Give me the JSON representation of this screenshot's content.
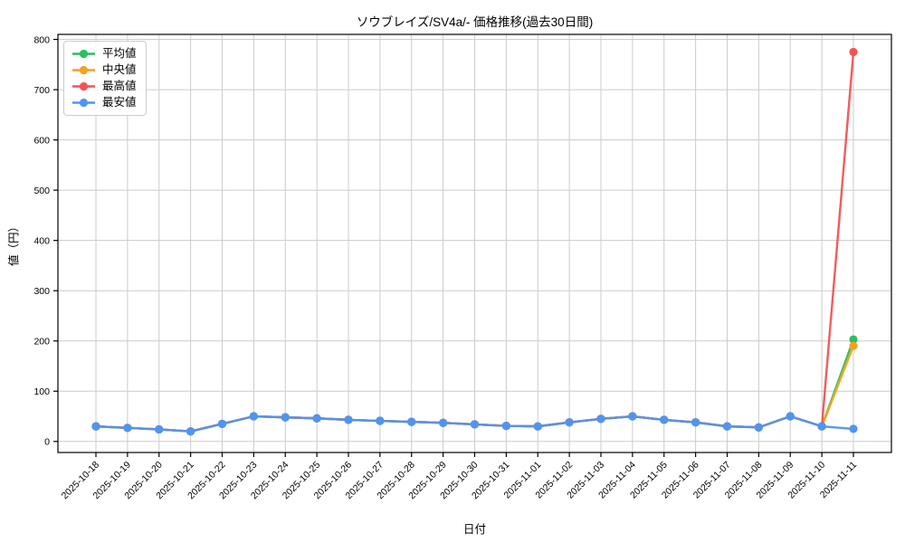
{
  "chart_data": {
    "type": "line",
    "title": "ソウブレイズ/SV4a/- 価格推移(過去30日間)",
    "xlabel": "日付",
    "ylabel": "値（円）",
    "x": [
      "2025-10-18",
      "2025-10-19",
      "2025-10-20",
      "2025-10-21",
      "2025-10-22",
      "2025-10-23",
      "2025-10-24",
      "2025-10-25",
      "2025-10-26",
      "2025-10-27",
      "2025-10-28",
      "2025-10-29",
      "2025-10-30",
      "2025-10-31",
      "2025-11-01",
      "2025-11-02",
      "2025-11-03",
      "2025-11-04",
      "2025-11-05",
      "2025-11-06",
      "2025-11-07",
      "2025-11-08",
      "2025-11-09",
      "2025-11-10",
      "2025-11-11"
    ],
    "series": [
      {
        "name": "平均値",
        "color": "#2dbe60",
        "values": [
          30,
          27,
          24,
          20,
          35,
          50,
          48,
          46,
          43,
          41,
          39,
          37,
          34,
          31,
          30,
          38,
          45,
          50,
          43,
          38,
          30,
          28,
          50,
          30,
          203
        ]
      },
      {
        "name": "中央値",
        "color": "#f7a11c",
        "values": [
          30,
          27,
          24,
          20,
          35,
          50,
          48,
          46,
          43,
          41,
          39,
          37,
          34,
          31,
          30,
          38,
          45,
          50,
          43,
          38,
          30,
          28,
          50,
          30,
          190
        ]
      },
      {
        "name": "最高値",
        "color": "#f25352",
        "values": [
          30,
          27,
          24,
          20,
          35,
          50,
          48,
          46,
          43,
          41,
          39,
          37,
          34,
          31,
          30,
          38,
          45,
          50,
          43,
          38,
          30,
          28,
          50,
          30,
          775
        ]
      },
      {
        "name": "最安値",
        "color": "#4e95f2",
        "values": [
          30,
          27,
          24,
          20,
          35,
          50,
          48,
          46,
          43,
          41,
          39,
          37,
          34,
          31,
          30,
          38,
          45,
          50,
          43,
          38,
          30,
          28,
          50,
          30,
          25
        ]
      }
    ],
    "ylim": [
      -22,
      810
    ],
    "yticks": [
      0,
      100,
      200,
      300,
      400,
      500,
      600,
      700,
      800
    ],
    "grid": true,
    "grid_color": "#cccccc",
    "axis_color": "#000000",
    "legend_position": "upper left"
  }
}
